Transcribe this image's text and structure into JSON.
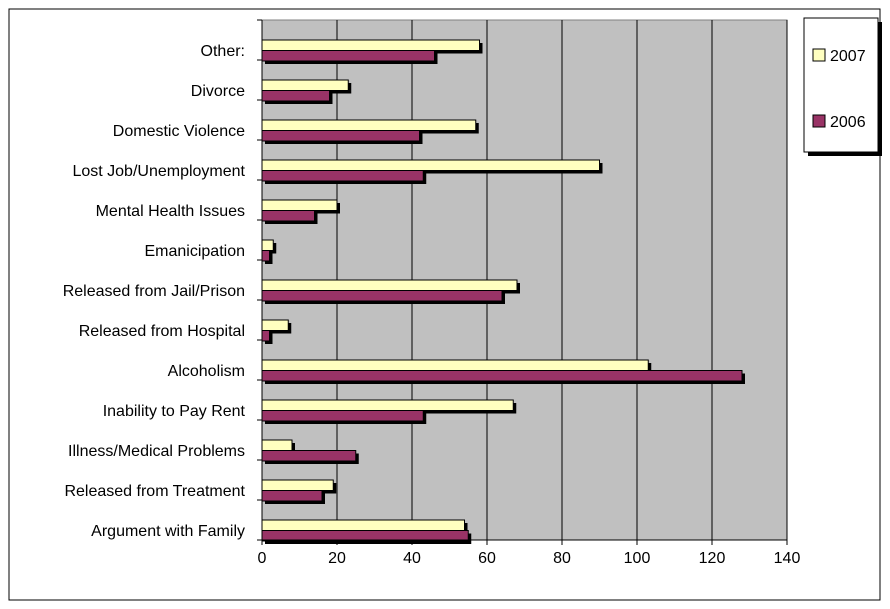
{
  "chart_data": {
    "type": "bar",
    "orientation": "horizontal",
    "categories": [
      "Other:",
      "Divorce",
      "Domestic Violence",
      "Lost Job/Unemployment",
      "Mental Health Issues",
      "Emanicipation",
      "Released from Jail/Prison",
      "Released from Hospital",
      "Alcoholism",
      "Inability to Pay Rent",
      "Illness/Medical Problems",
      "Released from Treatment",
      "Argument with Family"
    ],
    "series": [
      {
        "name": "2007",
        "color": "#ffffc0",
        "values": [
          58,
          23,
          57,
          90,
          20,
          3,
          68,
          7,
          103,
          67,
          8,
          19,
          54
        ]
      },
      {
        "name": "2006",
        "color": "#993366",
        "values": [
          46,
          18,
          42,
          43,
          14,
          2,
          64,
          2,
          128,
          43,
          25,
          16,
          55
        ]
      }
    ],
    "xlim": [
      0,
      140
    ],
    "xticks": [
      "0",
      "20",
      "40",
      "60",
      "80",
      "100",
      "120",
      "140"
    ],
    "plot_background": "#c0c0c0",
    "grid": true,
    "legend": "top-right",
    "title": "",
    "xlabel": "",
    "ylabel": ""
  }
}
